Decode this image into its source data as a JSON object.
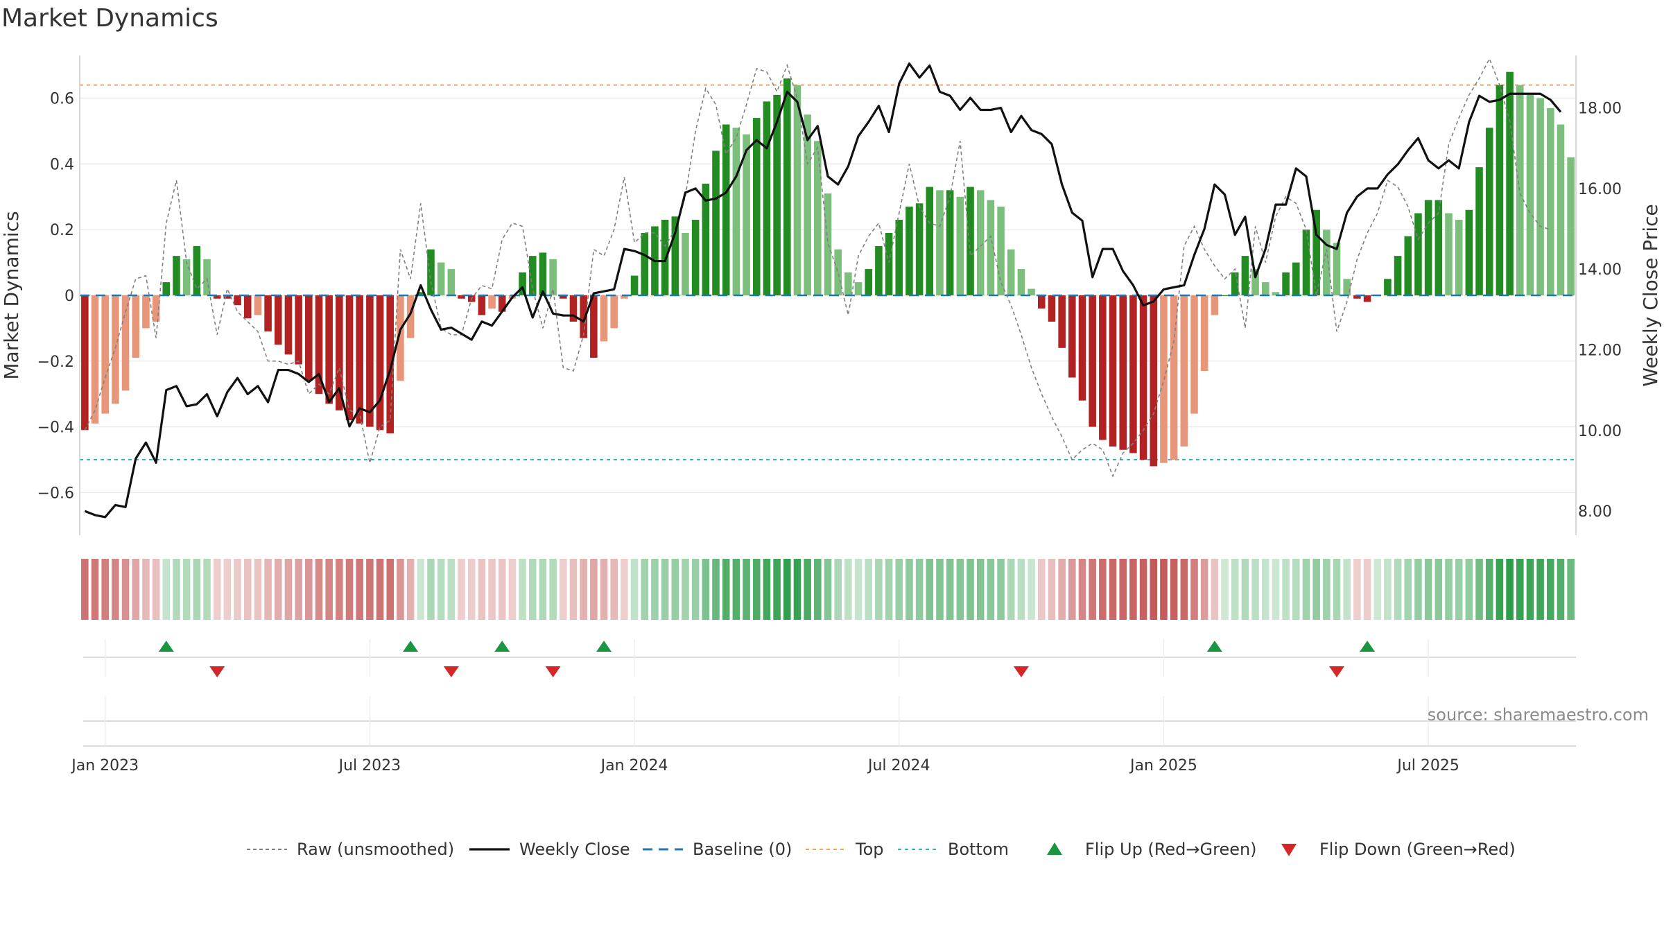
{
  "chart_data": {
    "type": "bar",
    "title": "Market Dynamics",
    "ylabel": "Market Dynamics",
    "y2label": "Weekly Close Price",
    "ylim": [
      -0.73,
      0.73
    ],
    "y2lim": [
      7.4,
      19.3
    ],
    "y_ticks": [
      -0.6,
      -0.4,
      -0.2,
      0,
      0.2,
      0.4,
      0.6
    ],
    "y_tick_labels": [
      "−0.6",
      "−0.4",
      "−0.2",
      "0",
      "0.2",
      "0.4",
      "0.6"
    ],
    "y2_ticks": [
      8,
      10,
      12,
      14,
      16,
      18
    ],
    "y2_tick_labels": [
      "8.00",
      "10.00",
      "12.00",
      "14.00",
      "16.00",
      "18.00"
    ],
    "x_ticks": [
      {
        "week": 2,
        "label": "Jan 2023"
      },
      {
        "week": 28,
        "label": "Jul 2023"
      },
      {
        "week": 54,
        "label": "Jan 2024"
      },
      {
        "week": 80,
        "label": "Jul 2024"
      },
      {
        "week": 106,
        "label": "Jan 2025"
      },
      {
        "week": 132,
        "label": "Jul 2025"
      }
    ],
    "top_level": 0.64,
    "bottom_level": -0.5,
    "grid": true,
    "source": "source: sharemaestro.com",
    "series": [
      {
        "name": "Market Dynamics",
        "values": [
          -0.41,
          -0.39,
          -0.36,
          -0.33,
          -0.29,
          -0.19,
          -0.1,
          -0.08,
          0.04,
          0.12,
          0.11,
          0.15,
          0.11,
          -0.01,
          -0.01,
          -0.03,
          -0.07,
          -0.06,
          -0.11,
          -0.15,
          -0.18,
          -0.21,
          -0.26,
          -0.3,
          -0.33,
          -0.35,
          -0.38,
          -0.39,
          -0.4,
          -0.41,
          -0.42,
          -0.26,
          -0.13,
          0.01,
          0.14,
          0.1,
          0.08,
          -0.01,
          -0.02,
          -0.06,
          -0.04,
          -0.05,
          -0.01,
          0.07,
          0.12,
          0.13,
          0.11,
          -0.01,
          -0.08,
          -0.13,
          -0.19,
          -0.14,
          -0.1,
          -0.01,
          0.06,
          0.19,
          0.21,
          0.23,
          0.24,
          0.19,
          0.23,
          0.34,
          0.44,
          0.52,
          0.51,
          0.49,
          0.54,
          0.59,
          0.61,
          0.66,
          0.64,
          0.55,
          0.47,
          0.31,
          0.14,
          0.07,
          0.04,
          0.08,
          0.15,
          0.19,
          0.23,
          0.27,
          0.28,
          0.33,
          0.32,
          0.32,
          0.3,
          0.33,
          0.32,
          0.29,
          0.27,
          0.14,
          0.08,
          0.02,
          -0.04,
          -0.08,
          -0.16,
          -0.25,
          -0.32,
          -0.4,
          -0.44,
          -0.46,
          -0.47,
          -0.48,
          -0.5,
          -0.52,
          -0.51,
          -0.5,
          -0.46,
          -0.36,
          -0.23,
          -0.06,
          0.0,
          0.07,
          0.12,
          0.08,
          0.04,
          0.01,
          0.07,
          0.1,
          0.2,
          0.26,
          0.2,
          0.16,
          0.05,
          -0.01,
          -0.02,
          0.0,
          0.05,
          0.12,
          0.18,
          0.25,
          0.29,
          0.29,
          0.25,
          0.23,
          0.26,
          0.39,
          0.51,
          0.64,
          0.68,
          0.64,
          0.61,
          0.6,
          0.57,
          0.52,
          0.42
        ]
      },
      {
        "name": "Raw (unsmoothed)",
        "values": [
          -0.41,
          -0.35,
          -0.25,
          -0.16,
          -0.05,
          0.05,
          0.06,
          -0.13,
          0.22,
          0.35,
          0.1,
          0.02,
          0.05,
          -0.12,
          0.02,
          -0.05,
          -0.08,
          -0.11,
          -0.2,
          -0.2,
          -0.21,
          -0.2,
          -0.3,
          -0.27,
          -0.3,
          -0.22,
          -0.35,
          -0.36,
          -0.51,
          -0.4,
          -0.38,
          0.14,
          0.05,
          0.28,
          0.04,
          -0.1,
          -0.12,
          -0.12,
          -0.01,
          0.03,
          0.02,
          0.17,
          0.22,
          0.21,
          0.02,
          -0.1,
          0.02,
          -0.22,
          -0.23,
          -0.12,
          0.14,
          0.12,
          0.2,
          0.36,
          0.16,
          0.19,
          0.19,
          0.15,
          0.2,
          0.3,
          0.5,
          0.63,
          0.58,
          0.43,
          0.48,
          0.58,
          0.69,
          0.68,
          0.62,
          0.7,
          0.6,
          0.4,
          0.45,
          0.16,
          0.07,
          -0.06,
          0.12,
          0.18,
          0.22,
          0.1,
          0.25,
          0.4,
          0.27,
          0.22,
          0.21,
          0.3,
          0.47,
          0.12,
          0.15,
          0.18,
          0.04,
          -0.03,
          -0.12,
          -0.22,
          -0.3,
          -0.37,
          -0.43,
          -0.5,
          -0.47,
          -0.45,
          -0.47,
          -0.55,
          -0.48,
          -0.45,
          -0.41,
          -0.36,
          -0.26,
          -0.14,
          0.15,
          0.21,
          0.14,
          0.09,
          0.05,
          0.08,
          -0.1,
          0.21,
          0.1,
          0.24,
          0.3,
          0.28,
          0.2,
          0.0,
          0.14,
          -0.11,
          -0.02,
          0.11,
          0.19,
          0.25,
          0.35,
          0.33,
          0.27,
          0.17,
          0.22,
          0.25,
          0.46,
          0.54,
          0.61,
          0.66,
          0.72,
          0.64,
          0.53,
          0.31,
          0.25,
          0.21,
          0.2
        ]
      },
      {
        "name": "Weekly Close",
        "values": [
          8.0,
          7.9,
          7.85,
          8.15,
          8.1,
          9.3,
          9.7,
          9.2,
          11.0,
          11.1,
          10.6,
          10.65,
          10.9,
          10.35,
          10.95,
          11.3,
          10.9,
          11.1,
          10.7,
          11.5,
          11.5,
          11.4,
          11.2,
          11.4,
          10.7,
          11.05,
          10.1,
          10.55,
          10.45,
          10.75,
          11.5,
          12.5,
          12.9,
          13.6,
          13.0,
          12.5,
          12.55,
          12.4,
          12.25,
          12.7,
          12.6,
          12.95,
          13.3,
          13.55,
          12.8,
          13.45,
          12.9,
          12.85,
          12.85,
          12.7,
          13.4,
          13.45,
          13.5,
          14.5,
          14.45,
          14.35,
          14.2,
          14.2,
          14.9,
          15.9,
          16.0,
          15.7,
          15.75,
          15.9,
          16.3,
          16.95,
          17.2,
          17.0,
          17.65,
          18.4,
          18.15,
          17.2,
          17.55,
          16.3,
          16.1,
          16.55,
          17.3,
          17.65,
          18.05,
          17.4,
          18.6,
          19.1,
          18.75,
          19.05,
          18.4,
          18.3,
          17.95,
          18.25,
          17.95,
          17.95,
          18.0,
          17.4,
          17.8,
          17.45,
          17.35,
          17.1,
          16.1,
          15.4,
          15.2,
          13.8,
          14.5,
          14.5,
          13.95,
          13.6,
          13.1,
          13.2,
          13.5,
          13.55,
          13.6,
          14.35,
          15.0,
          16.1,
          15.85,
          14.85,
          15.3,
          13.8,
          14.5,
          15.6,
          15.6,
          16.5,
          16.3,
          14.85,
          14.6,
          14.5,
          15.4,
          15.8,
          16.0,
          16.0,
          16.35,
          16.6,
          16.95,
          17.25,
          16.7,
          16.5,
          16.7,
          16.5,
          17.65,
          18.3,
          18.15,
          18.2,
          18.35,
          18.35,
          18.35,
          18.35,
          18.2,
          17.9
        ]
      },
      {
        "name": "Baseline (0)",
        "values": [
          0
        ]
      },
      {
        "name": "Top",
        "values": [
          0.64
        ]
      },
      {
        "name": "Bottom",
        "values": [
          -0.5
        ]
      },
      {
        "name": "Flip Up (Red→Green)",
        "weeks": [
          8,
          32,
          41,
          51,
          111,
          126
        ]
      },
      {
        "name": "Flip Down (Green→Red)",
        "weeks": [
          13,
          36,
          46,
          92,
          123
        ]
      }
    ],
    "legend": {
      "position": "bottom",
      "items": [
        {
          "label": "Raw (unsmoothed)",
          "style": "dashed-gray"
        },
        {
          "label": "Weekly Close",
          "style": "solid-black"
        },
        {
          "label": "Baseline (0)",
          "style": "dashed-blue"
        },
        {
          "label": "Top",
          "style": "dotted-orange"
        },
        {
          "label": "Bottom",
          "style": "dotted-cyan"
        },
        {
          "label": "Flip Up (Red→Green)",
          "style": "triangle-up-green"
        },
        {
          "label": "Flip Down (Green→Red)",
          "style": "triangle-down-red"
        }
      ]
    },
    "colors": {
      "strong_green": "#228b22",
      "light_green": "#7cbf7c",
      "strong_red": "#b22222",
      "light_red": "#e8967a",
      "raw_line": "#808080",
      "close_line": "#111111",
      "baseline": "#1f77b4",
      "top": "#f4a460",
      "bottom": "#17becf",
      "flip_up": "#1a9641",
      "flip_down": "#d62728"
    }
  }
}
